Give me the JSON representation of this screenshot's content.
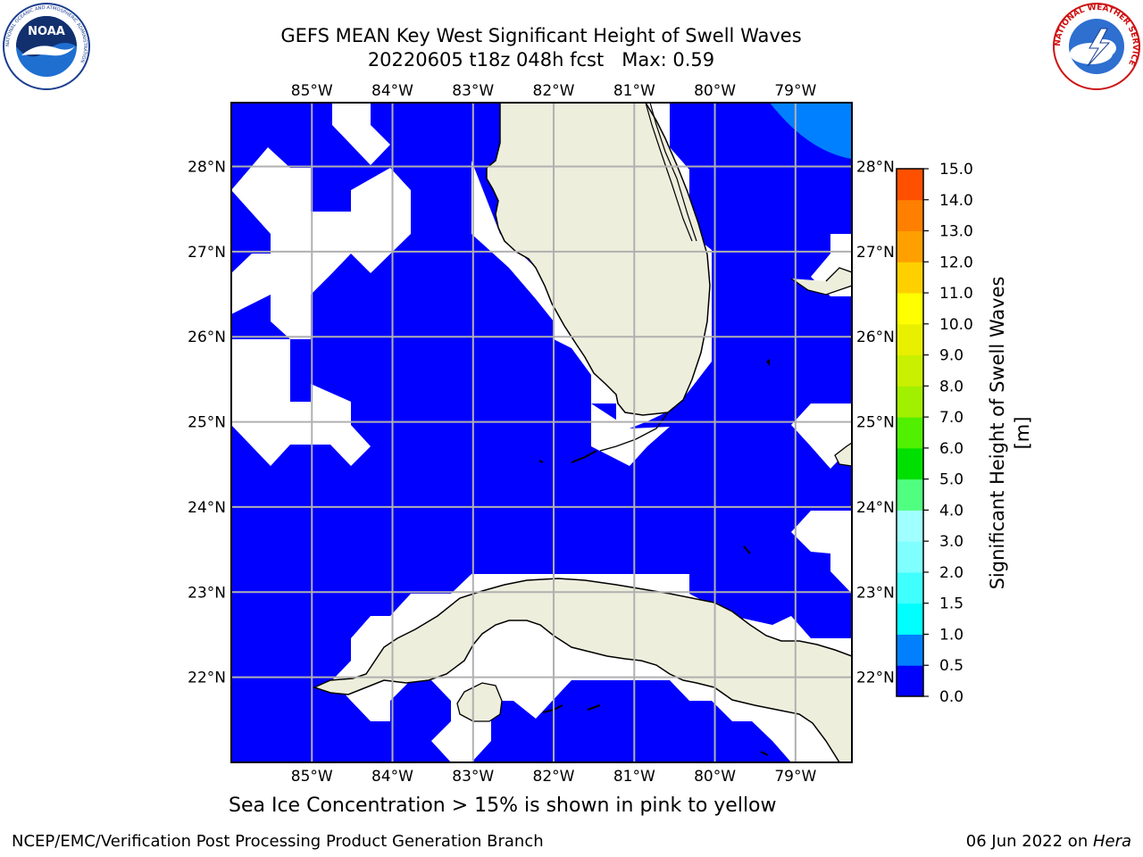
{
  "title": {
    "line1": "GEFS MEAN Key West Significant Height of Swell Waves",
    "line2": "20220605 t18z 048h fcst   Max: 0.59"
  },
  "map": {
    "region": "Key West",
    "lon_range": [
      -86.0,
      -78.3
    ],
    "lat_range": [
      21.0,
      28.75
    ],
    "lon_ticks": [
      "85°W",
      "84°W",
      "83°W",
      "82°W",
      "81°W",
      "80°W",
      "79°W"
    ],
    "lat_ticks": [
      "28°N",
      "27°N",
      "26°N",
      "25°N",
      "24°N",
      "23°N",
      "22°N"
    ],
    "gridlines": true,
    "colors": {
      "water_low": "#0000ff",
      "water_mid": "#0080ff",
      "land": "#eeeedd",
      "no_data": "#ffffff",
      "coastline": "#000000",
      "grid": "#b0b0b0"
    }
  },
  "colorbar": {
    "label": "Significant Height of Swell Waves [m]",
    "ticks": [
      "0.0",
      "0.5",
      "1.0",
      "1.5",
      "2.0",
      "3.0",
      "4.0",
      "5.0",
      "6.0",
      "7.0",
      "8.0",
      "9.0",
      "10.0",
      "11.0",
      "12.0",
      "13.0",
      "14.0",
      "15.0"
    ],
    "colors": [
      "#0000ff",
      "#0080ff",
      "#00ffff",
      "#40ffff",
      "#80ffff",
      "#a0ffff",
      "#50ff80",
      "#00e000",
      "#50f000",
      "#a0f000",
      "#c8f000",
      "#e8f000",
      "#ffff00",
      "#ffd000",
      "#ffa000",
      "#ff8000",
      "#ff5000",
      "#ff2000",
      "#ff0000"
    ]
  },
  "note": "Sea Ice Concentration > 15% is shown in pink to yellow",
  "footer": {
    "left": "NCEP/EMC/Verification Post Processing Product Generation Branch",
    "right_date": "06 Jun 2022 on ",
    "right_host": "Hera"
  },
  "logos": {
    "noaa": {
      "text": "NOAA",
      "ring": "NATIONAL OCEANIC AND ATMOSPHERIC ADMINISTRATION"
    },
    "nws": {
      "ring": "NATIONAL WEATHER SERVICE"
    }
  }
}
